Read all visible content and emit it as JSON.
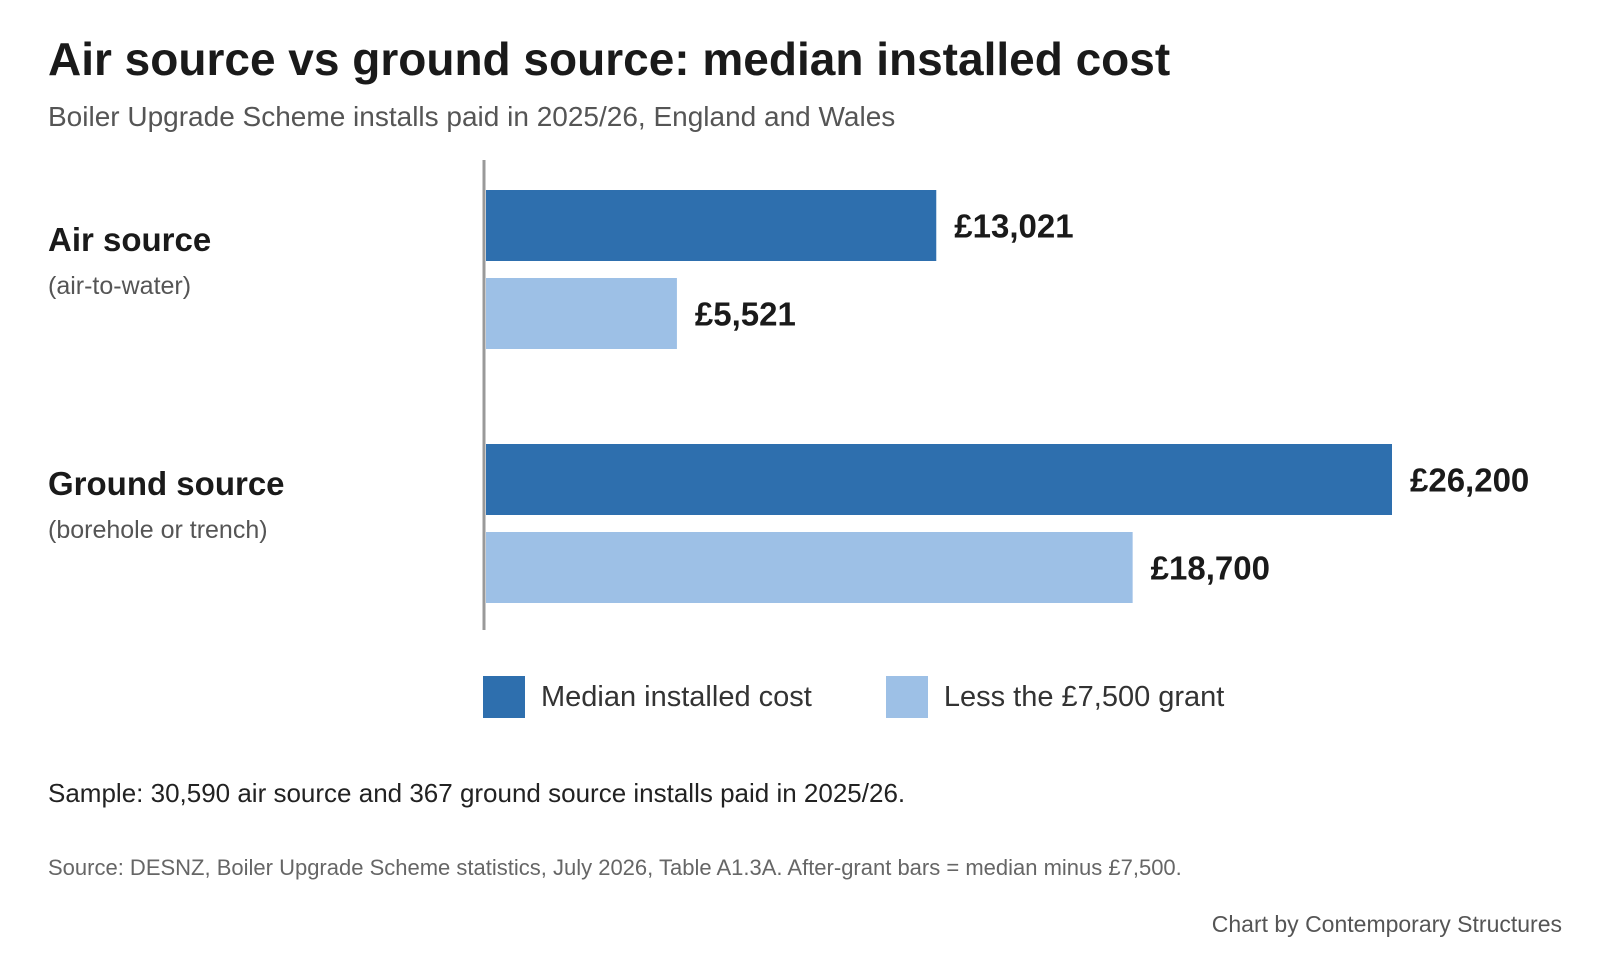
{
  "chart_data": {
    "type": "bar",
    "orientation": "horizontal",
    "title": "Air source vs ground source: median installed cost",
    "subtitle": "Boiler Upgrade Scheme installs paid in 2025/26, England and Wales",
    "categories": [
      {
        "label": "Air source",
        "sublabel": "(air-to-water)"
      },
      {
        "label": "Ground source",
        "sublabel": "(borehole or trench)"
      }
    ],
    "series": [
      {
        "name": "Median installed cost",
        "color": "#2e6fae",
        "values": [
          13021,
          26200
        ],
        "labels": [
          "£13,021",
          "£26,200"
        ]
      },
      {
        "name": "Less the £7,500 grant",
        "color": "#9dc0e6",
        "values": [
          5521,
          18700
        ],
        "labels": [
          "£5,521",
          "£18,700"
        ]
      }
    ],
    "xlim": [
      0,
      26200
    ],
    "grid": false,
    "legend_position": "bottom"
  },
  "footer": {
    "note": "Sample: 30,590 air source and 367 ground source installs paid in 2025/26.",
    "source": "Source: DESNZ, Boiler Upgrade Scheme statistics, July 2026, Table A1.3A. After-grant bars = median minus £7,500.",
    "credit": "Chart by Contemporary Structures"
  }
}
